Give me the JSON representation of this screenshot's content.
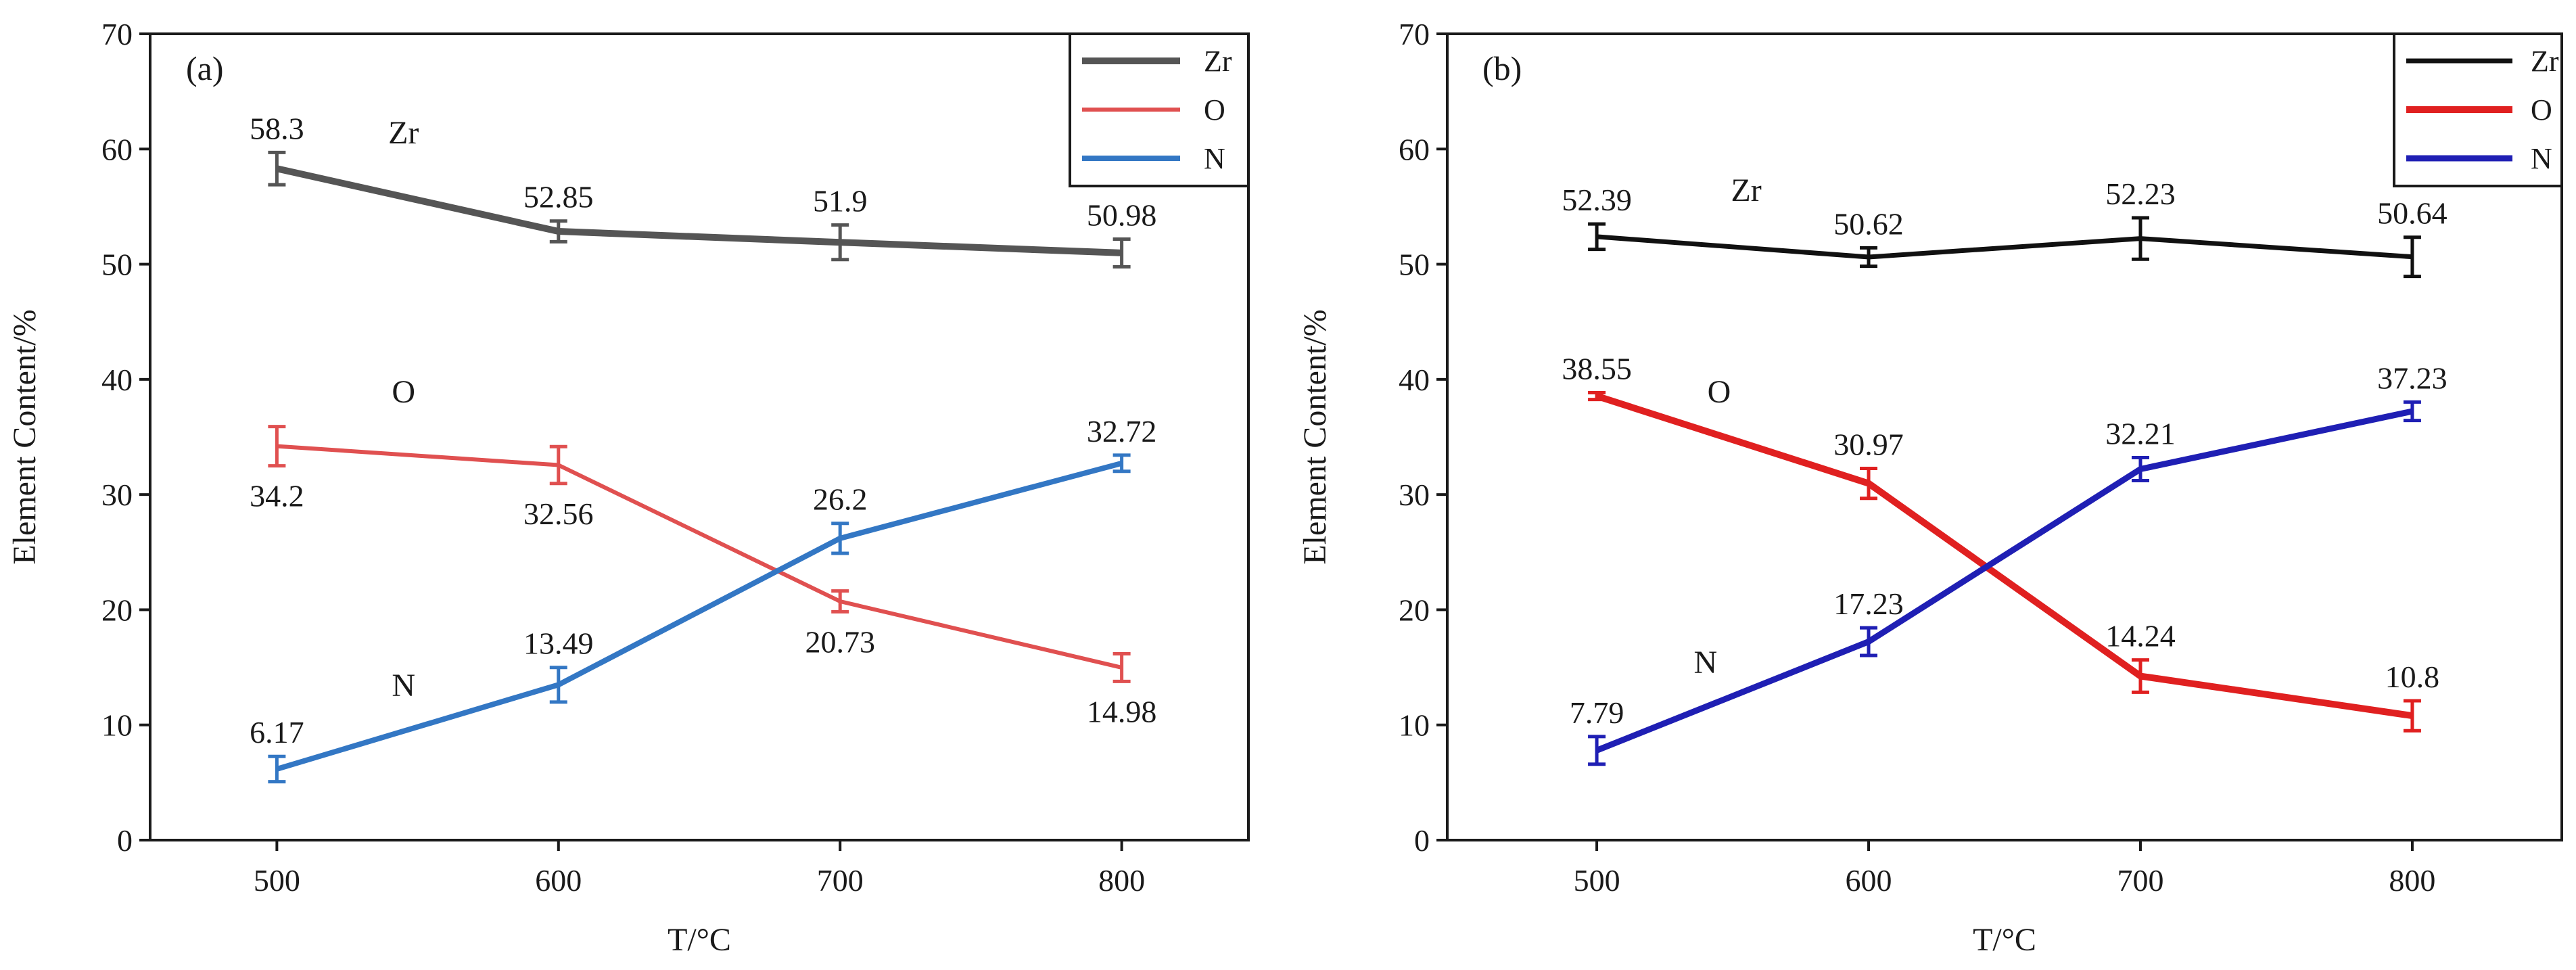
{
  "chart_data": [
    {
      "type": "line",
      "panel_label": "(a)",
      "title": "",
      "xlabel": "T/°C",
      "ylabel": "Element Content/%",
      "x": [
        500,
        600,
        700,
        800
      ],
      "x_tick_labels": [
        "500",
        "600",
        "700",
        "800"
      ],
      "xlim": [
        455,
        845
      ],
      "ylim": [
        0,
        70
      ],
      "y_ticks": [
        0,
        10,
        20,
        30,
        40,
        50,
        60,
        70
      ],
      "y_tick_labels": [
        "0",
        "10",
        "20",
        "30",
        "40",
        "50",
        "60",
        "70"
      ],
      "grid": false,
      "legend": "top-right",
      "series": [
        {
          "name": "Zr",
          "color": "#555555",
          "values": [
            58.3,
            52.85,
            51.9,
            50.98
          ],
          "errors": [
            1.4,
            0.9,
            1.5,
            1.2
          ],
          "labels": [
            "58.3",
            "52.85",
            "51.9",
            "50.98"
          ],
          "label_pos": [
            "above",
            "above",
            "above",
            "above"
          ],
          "annotation": "Zr"
        },
        {
          "name": "O",
          "color": "#e05050",
          "values": [
            34.2,
            32.56,
            20.73,
            14.98
          ],
          "errors": [
            1.7,
            1.6,
            0.9,
            1.2
          ],
          "labels": [
            "34.2",
            "32.56",
            "20.73",
            "14.98"
          ],
          "label_pos": [
            "below",
            "below",
            "below",
            "below"
          ],
          "annotation": "O"
        },
        {
          "name": "N",
          "color": "#3377c4",
          "values": [
            6.17,
            13.49,
            26.2,
            32.72
          ],
          "errors": [
            1.1,
            1.5,
            1.3,
            0.7
          ],
          "labels": [
            "6.17",
            "13.49",
            "26.2",
            "32.72"
          ],
          "label_pos": [
            "above",
            "above",
            "above",
            "above"
          ],
          "annotation": "N"
        }
      ]
    },
    {
      "type": "line",
      "panel_label": "(b)",
      "title": "",
      "xlabel": "T/°C",
      "ylabel": "Element Content/%",
      "x": [
        500,
        600,
        700,
        800
      ],
      "x_tick_labels": [
        "500",
        "600",
        "700",
        "800"
      ],
      "xlim": [
        445,
        855
      ],
      "ylim": [
        0,
        70
      ],
      "y_ticks": [
        0,
        10,
        20,
        30,
        40,
        50,
        60,
        70
      ],
      "y_tick_labels": [
        "0",
        "10",
        "20",
        "30",
        "40",
        "50",
        "60",
        "70"
      ],
      "grid": false,
      "legend": "top-right",
      "series": [
        {
          "name": "Zr",
          "color": "#111111",
          "values": [
            52.39,
            50.62,
            52.23,
            50.64
          ],
          "errors": [
            1.1,
            0.8,
            1.8,
            1.7
          ],
          "labels": [
            "52.39",
            "50.62",
            "52.23",
            "50.64"
          ],
          "label_pos": [
            "above",
            "above",
            "above",
            "above"
          ],
          "annotation": "Zr"
        },
        {
          "name": "O",
          "color": "#e02020",
          "values": [
            38.55,
            30.97,
            14.24,
            10.8
          ],
          "errors": [
            0.3,
            1.3,
            1.4,
            1.3
          ],
          "labels": [
            "38.55",
            "30.97",
            "14.24",
            "10.8"
          ],
          "label_pos": [
            "above",
            "above",
            "above",
            "above"
          ],
          "annotation": "O"
        },
        {
          "name": "N",
          "color": "#1f1fb4",
          "values": [
            7.79,
            17.23,
            32.21,
            37.23
          ],
          "errors": [
            1.2,
            1.2,
            1.0,
            0.8
          ],
          "labels": [
            "7.79",
            "17.23",
            "32.21",
            "37.23"
          ],
          "label_pos": [
            "above",
            "above",
            "above",
            "above"
          ],
          "annotation": "N"
        }
      ]
    }
  ]
}
